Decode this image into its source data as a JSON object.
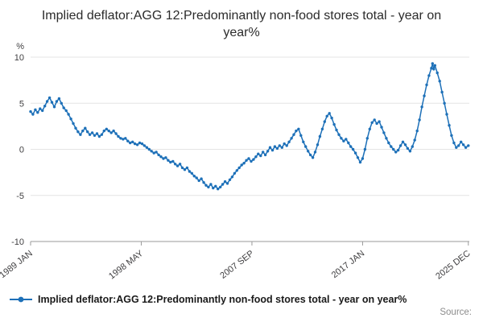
{
  "title": {
    "text": "Implied deflator:AGG 12:Predominantly non-food stores total - year on year%"
  },
  "legend": {
    "label": "Implied deflator:AGG 12:Predominantly non-food stores total - year on year%"
  },
  "source": {
    "label": "Source:"
  },
  "colors": {
    "line": "#1d70b8",
    "grid": "#e4e4e4",
    "axis": "#9a9a9a",
    "tick_text": "#414042",
    "title_text": "#2b2b2b",
    "muted": "#8c8c8c"
  },
  "chart_data": {
    "type": "line",
    "title": "Implied deflator:AGG 12:Predominantly non-food stores total - year on year%",
    "xlabel": "",
    "ylabel": "%",
    "unit_label": "%",
    "legend_position": "bottom",
    "grid": true,
    "marker": "circle",
    "x_range": [
      1989.0,
      2026.0
    ],
    "ylim": [
      -10,
      10
    ],
    "y_ticks": [
      10,
      5,
      0,
      -5,
      -10
    ],
    "x_ticks": [
      1989.0,
      1998.3333,
      2007.6667,
      2017.0,
      2025.9167
    ],
    "x_tick_labels": [
      "1989 JAN",
      "1998 MAY",
      "2007 SEP",
      "2017 JAN",
      "2025 DEC"
    ],
    "series": [
      {
        "name": "Implied deflator:AGG 12:Predominantly non-food stores total - year on year%",
        "color": "#1d70b8",
        "points": [
          [
            1989.0,
            4.1
          ],
          [
            1989.2,
            3.8
          ],
          [
            1989.4,
            4.3
          ],
          [
            1989.6,
            4.0
          ],
          [
            1989.8,
            4.4
          ],
          [
            1990.0,
            4.2
          ],
          [
            1990.2,
            4.7
          ],
          [
            1990.4,
            5.2
          ],
          [
            1990.6,
            5.6
          ],
          [
            1990.8,
            5.1
          ],
          [
            1991.0,
            4.6
          ],
          [
            1991.2,
            5.2
          ],
          [
            1991.4,
            5.5
          ],
          [
            1991.6,
            5.0
          ],
          [
            1991.8,
            4.5
          ],
          [
            1992.0,
            4.2
          ],
          [
            1992.2,
            3.8
          ],
          [
            1992.4,
            3.3
          ],
          [
            1992.6,
            2.8
          ],
          [
            1992.8,
            2.3
          ],
          [
            1993.0,
            1.9
          ],
          [
            1993.2,
            1.6
          ],
          [
            1993.4,
            2.0
          ],
          [
            1993.6,
            2.3
          ],
          [
            1993.8,
            1.9
          ],
          [
            1994.0,
            1.6
          ],
          [
            1994.2,
            1.8
          ],
          [
            1994.4,
            1.5
          ],
          [
            1994.6,
            1.7
          ],
          [
            1994.8,
            1.4
          ],
          [
            1995.0,
            1.6
          ],
          [
            1995.2,
            2.0
          ],
          [
            1995.4,
            2.2
          ],
          [
            1995.6,
            2.0
          ],
          [
            1995.8,
            1.8
          ],
          [
            1996.0,
            2.0
          ],
          [
            1996.2,
            1.7
          ],
          [
            1996.4,
            1.4
          ],
          [
            1996.6,
            1.2
          ],
          [
            1996.8,
            1.1
          ],
          [
            1997.0,
            1.2
          ],
          [
            1997.2,
            0.9
          ],
          [
            1997.4,
            0.7
          ],
          [
            1997.6,
            0.8
          ],
          [
            1997.8,
            0.6
          ],
          [
            1998.0,
            0.5
          ],
          [
            1998.2,
            0.7
          ],
          [
            1998.4,
            0.6
          ],
          [
            1998.6,
            0.4
          ],
          [
            1998.8,
            0.2
          ],
          [
            1999.0,
            0.0
          ],
          [
            1999.2,
            -0.2
          ],
          [
            1999.4,
            -0.4
          ],
          [
            1999.6,
            -0.3
          ],
          [
            1999.8,
            -0.6
          ],
          [
            2000.0,
            -0.8
          ],
          [
            2000.2,
            -1.0
          ],
          [
            2000.4,
            -0.9
          ],
          [
            2000.6,
            -1.2
          ],
          [
            2000.8,
            -1.4
          ],
          [
            2001.0,
            -1.3
          ],
          [
            2001.2,
            -1.6
          ],
          [
            2001.4,
            -1.8
          ],
          [
            2001.6,
            -1.6
          ],
          [
            2001.8,
            -2.0
          ],
          [
            2002.0,
            -2.2
          ],
          [
            2002.2,
            -2.0
          ],
          [
            2002.4,
            -2.4
          ],
          [
            2002.6,
            -2.6
          ],
          [
            2002.8,
            -2.9
          ],
          [
            2003.0,
            -3.1
          ],
          [
            2003.2,
            -3.4
          ],
          [
            2003.4,
            -3.2
          ],
          [
            2003.6,
            -3.6
          ],
          [
            2003.8,
            -3.9
          ],
          [
            2004.0,
            -4.1
          ],
          [
            2004.2,
            -3.8
          ],
          [
            2004.4,
            -4.2
          ],
          [
            2004.6,
            -4.0
          ],
          [
            2004.8,
            -4.3
          ],
          [
            2005.0,
            -4.1
          ],
          [
            2005.2,
            -3.8
          ],
          [
            2005.4,
            -3.5
          ],
          [
            2005.6,
            -3.7
          ],
          [
            2005.8,
            -3.3
          ],
          [
            2006.0,
            -3.0
          ],
          [
            2006.2,
            -2.6
          ],
          [
            2006.4,
            -2.3
          ],
          [
            2006.6,
            -2.0
          ],
          [
            2006.8,
            -1.7
          ],
          [
            2007.0,
            -1.5
          ],
          [
            2007.2,
            -1.2
          ],
          [
            2007.4,
            -1.0
          ],
          [
            2007.6,
            -1.3
          ],
          [
            2007.8,
            -1.1
          ],
          [
            2008.0,
            -0.8
          ],
          [
            2008.2,
            -0.5
          ],
          [
            2008.4,
            -0.7
          ],
          [
            2008.6,
            -0.3
          ],
          [
            2008.8,
            -0.6
          ],
          [
            2009.0,
            -0.2
          ],
          [
            2009.2,
            0.2
          ],
          [
            2009.4,
            -0.1
          ],
          [
            2009.6,
            0.3
          ],
          [
            2009.8,
            0.1
          ],
          [
            2010.0,
            0.4
          ],
          [
            2010.2,
            0.2
          ],
          [
            2010.4,
            0.6
          ],
          [
            2010.6,
            0.4
          ],
          [
            2010.8,
            0.8
          ],
          [
            2011.0,
            1.2
          ],
          [
            2011.2,
            1.6
          ],
          [
            2011.4,
            2.0
          ],
          [
            2011.6,
            2.2
          ],
          [
            2011.8,
            1.5
          ],
          [
            2012.0,
            0.8
          ],
          [
            2012.2,
            0.3
          ],
          [
            2012.4,
            -0.2
          ],
          [
            2012.6,
            -0.6
          ],
          [
            2012.8,
            -0.9
          ],
          [
            2013.0,
            -0.3
          ],
          [
            2013.2,
            0.5
          ],
          [
            2013.4,
            1.4
          ],
          [
            2013.6,
            2.2
          ],
          [
            2013.8,
            3.0
          ],
          [
            2014.0,
            3.6
          ],
          [
            2014.2,
            3.9
          ],
          [
            2014.4,
            3.4
          ],
          [
            2014.6,
            2.7
          ],
          [
            2014.8,
            2.1
          ],
          [
            2015.0,
            1.6
          ],
          [
            2015.2,
            1.2
          ],
          [
            2015.4,
            0.9
          ],
          [
            2015.6,
            1.1
          ],
          [
            2015.8,
            0.7
          ],
          [
            2016.0,
            0.3
          ],
          [
            2016.2,
            0.0
          ],
          [
            2016.4,
            -0.4
          ],
          [
            2016.6,
            -0.9
          ],
          [
            2016.8,
            -1.4
          ],
          [
            2017.0,
            -1.0
          ],
          [
            2017.2,
            0.0
          ],
          [
            2017.4,
            1.2
          ],
          [
            2017.6,
            2.2
          ],
          [
            2017.8,
            2.9
          ],
          [
            2018.0,
            3.2
          ],
          [
            2018.2,
            2.8
          ],
          [
            2018.4,
            3.0
          ],
          [
            2018.6,
            2.4
          ],
          [
            2018.8,
            1.8
          ],
          [
            2019.0,
            1.2
          ],
          [
            2019.2,
            0.7
          ],
          [
            2019.4,
            0.3
          ],
          [
            2019.6,
            0.0
          ],
          [
            2019.8,
            -0.3
          ],
          [
            2020.0,
            -0.1
          ],
          [
            2020.2,
            0.4
          ],
          [
            2020.4,
            0.8
          ],
          [
            2020.6,
            0.5
          ],
          [
            2020.8,
            0.1
          ],
          [
            2021.0,
            -0.2
          ],
          [
            2021.2,
            0.3
          ],
          [
            2021.4,
            1.0
          ],
          [
            2021.6,
            2.0
          ],
          [
            2021.8,
            3.2
          ],
          [
            2022.0,
            4.6
          ],
          [
            2022.2,
            5.8
          ],
          [
            2022.4,
            7.0
          ],
          [
            2022.6,
            8.0
          ],
          [
            2022.8,
            8.8
          ],
          [
            2022.9,
            9.3
          ],
          [
            2023.0,
            8.7
          ],
          [
            2023.1,
            9.1
          ],
          [
            2023.3,
            8.3
          ],
          [
            2023.5,
            7.4
          ],
          [
            2023.7,
            6.2
          ],
          [
            2023.9,
            5.0
          ],
          [
            2024.1,
            3.8
          ],
          [
            2024.3,
            2.6
          ],
          [
            2024.5,
            1.5
          ],
          [
            2024.7,
            0.7
          ],
          [
            2024.9,
            0.2
          ],
          [
            2025.1,
            0.4
          ],
          [
            2025.3,
            0.8
          ],
          [
            2025.5,
            0.5
          ],
          [
            2025.7,
            0.2
          ],
          [
            2025.92,
            0.4
          ]
        ]
      }
    ]
  }
}
